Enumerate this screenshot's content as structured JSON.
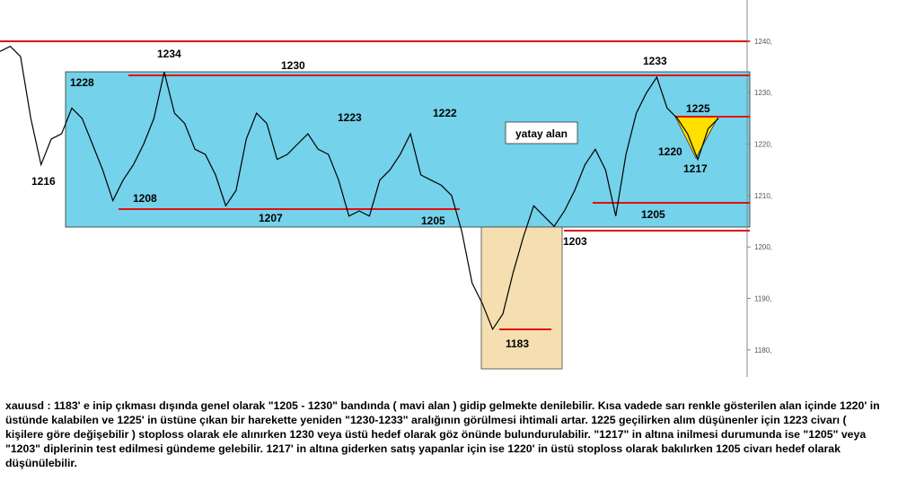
{
  "chart_data": {
    "type": "line",
    "color": "#000000",
    "values": [
      1238,
      1239,
      1237,
      1225,
      1216,
      1221,
      1222,
      1227,
      1225,
      1220,
      1215,
      1209,
      1213,
      1216,
      1220,
      1225,
      1234,
      1226,
      1224,
      1219,
      1218,
      1214,
      1208,
      1211,
      1221,
      1226,
      1224,
      1217,
      1218,
      1220,
      1222,
      1219,
      1218,
      1213,
      1206,
      1207,
      1206,
      1213,
      1215,
      1218,
      1222,
      1214,
      1213,
      1212,
      1210,
      1203,
      1193,
      1189,
      1184,
      1187,
      1195,
      1202,
      1208,
      1206,
      1204,
      1207,
      1211,
      1216,
      1219,
      1215,
      1206,
      1218,
      1226,
      1230,
      1233,
      1227,
      1225,
      1222,
      1217,
      1223,
      1225
    ],
    "ylim": [
      1175,
      1248
    ],
    "yticks": [
      {
        "value": 1180,
        "label": "1180,"
      },
      {
        "value": 1190,
        "label": "1190,"
      },
      {
        "value": 1200,
        "label": "1200,"
      },
      {
        "value": 1210,
        "label": "1210,"
      },
      {
        "value": 1220,
        "label": "1220,"
      },
      {
        "value": 1230,
        "label": "1230,"
      },
      {
        "value": 1240,
        "label": "1240,"
      }
    ],
    "annotations": [
      "1234",
      "1230",
      "1228",
      "1216",
      "1208",
      "1207",
      "1223",
      "1205",
      "1222",
      "yatay alan",
      "1183",
      "1203",
      "1233",
      "1225",
      "1220",
      "1217",
      "1205"
    ]
  },
  "note": "xauusd : 1183' e inip çıkması dışında genel olarak \"1205 - 1230\" bandında ( mavi alan ) gidip gelmekte denilebilir. Kısa vadede sarı renkle gösterilen alan içinde 1220' in üstünde kalabilen ve 1225' in üstüne çıkan bir harekette yeniden \"1230-1233\" aralığının görülmesi ihtimali artar. 1225 geçilirken alım düşünenler için 1223 civarı ( kişilere göre değişebilir ) stoploss olarak ele alınırken 1230 veya üstü hedef olarak göz önünde bulundurulabilir. \"1217\" in altına inilmesi durumunda ise \"1205\" veya \"1203\" diplerinin test edilmesi gündeme gelebilir. 1217' in altına giderken satış yapanlar için ise 1220' in üstü stoploss olarak bakılırken 1205 civarı hedef olarak düşünülebilir."
}
